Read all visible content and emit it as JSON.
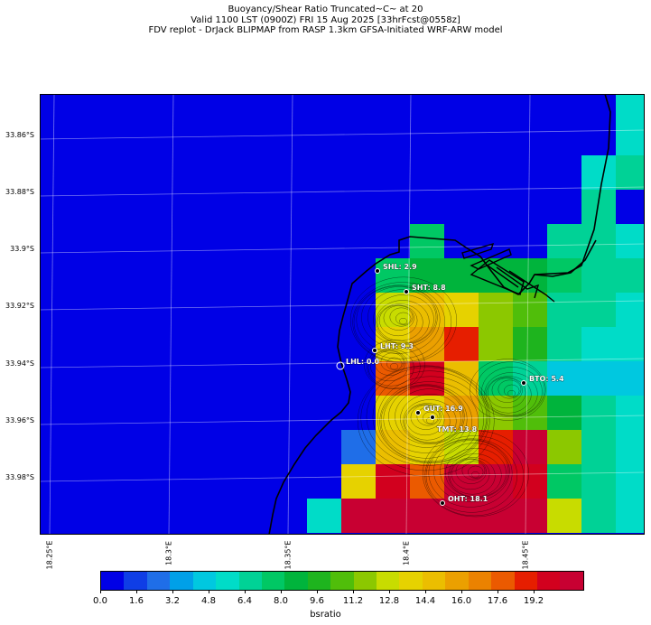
{
  "title": {
    "line1": "Buoyancy/Shear Ratio Truncated~C~    at 20",
    "line2": "Valid 1100 LST (0900Z) FRI 15 Aug 2025 [33hrFcst@0558z]",
    "line3": "FDV replot - DrJack BLIPMAP from RASP 1.3km GFSA-Initiated WRF-ARW model"
  },
  "lat_ticks": [
    "33.86°S",
    "33.88°S",
    "33.9°S",
    "33.92°S",
    "33.94°S",
    "33.96°S",
    "33.98°S"
  ],
  "lon_ticks": [
    "18.25°E",
    "18.3°E",
    "18.35°E",
    "18.4°E",
    "18.45°E"
  ],
  "colorbar": {
    "label": "bsratio",
    "tick_labels": [
      "0.0",
      "1.6",
      "3.2",
      "4.8",
      "6.4",
      "8.0",
      "9.6",
      "11.2",
      "12.8",
      "14.4",
      "16.0",
      "17.6",
      "19.2"
    ],
    "colors": [
      "#0000e6",
      "#0f3ee6",
      "#1f6ee8",
      "#00a0e8",
      "#00c8e0",
      "#00dcc8",
      "#00d296",
      "#00c864",
      "#00b43c",
      "#1eb41e",
      "#50be0a",
      "#8cc800",
      "#c8dc00",
      "#e6d200",
      "#ebbe00",
      "#eba000",
      "#eb8200",
      "#eb5a00",
      "#e61e00",
      "#d2001e",
      "#c80032"
    ]
  },
  "stations": [
    {
      "label": "SHL: 2.9"
    },
    {
      "label": "SHT: 8.8"
    },
    {
      "label": "LHT: 9.3"
    },
    {
      "label": "LHL: 0.0"
    },
    {
      "label": "BTO: 5.4"
    },
    {
      "label": "GUT: 16.9"
    },
    {
      "label": "TMT: 13.8"
    },
    {
      "label": "OHT: 18.1"
    }
  ]
}
